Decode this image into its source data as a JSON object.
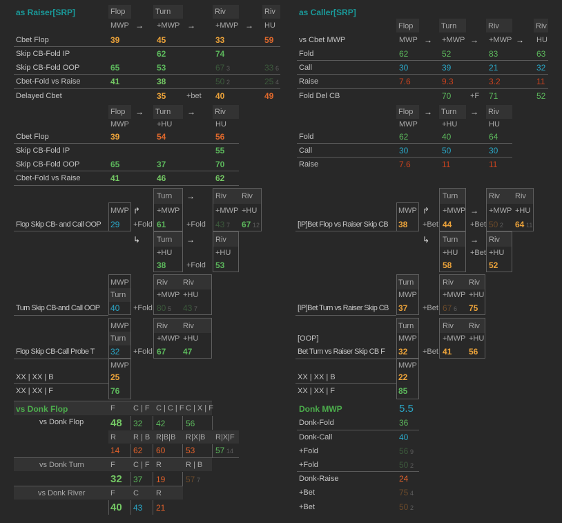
{
  "colors": {
    "background": "#282828",
    "title": "#1a9a9a",
    "orange": "#eca33a",
    "green": "#5cb85c",
    "cyan": "#2aa8c8",
    "red": "#c8421e"
  },
  "icons": {
    "arrow_right": "arrow-right-icon",
    "branch_up": "branch-up-icon",
    "branch_down": "branch-down-icon"
  },
  "raiser": {
    "title": "as Raiser[SRP]",
    "multiway": {
      "headers": [
        "Flop",
        "Turn",
        "Riv",
        "Riv"
      ],
      "sub": [
        "MWP",
        "+MWP",
        "+MWP",
        "HU"
      ],
      "rows": [
        {
          "label": "Cbet Flop",
          "values": [
            "39",
            "45",
            "33",
            "59"
          ],
          "samples": [
            "",
            "",
            "",
            ""
          ]
        },
        {
          "label": "Skip CB-Fold IP",
          "values": [
            "",
            "62",
            "74",
            ""
          ],
          "samples": [
            "",
            "",
            "",
            ""
          ]
        },
        {
          "label": "Skip CB-Fold OOP",
          "values": [
            "65",
            "53",
            "67",
            "33"
          ],
          "samples": [
            "",
            "",
            "3",
            "6"
          ]
        },
        {
          "label": "Cbet-Fold vs Raise",
          "values": [
            "41",
            "38",
            "50",
            "25"
          ],
          "samples": [
            "",
            "",
            "2",
            "4"
          ]
        },
        {
          "label": "Delayed Cbet",
          "values": [
            "",
            "35",
            "40",
            "49"
          ],
          "samples": [
            "",
            "",
            "",
            ""
          ],
          "connector": "+bet"
        }
      ]
    },
    "to_hu": {
      "headers": [
        "Flop",
        "Turn",
        "Riv"
      ],
      "sub": [
        "MWP",
        "+HU",
        "HU"
      ],
      "rows": [
        {
          "label": "Cbet Flop",
          "values": [
            "39",
            "54",
            "56"
          ]
        },
        {
          "label": "Skip CB-Fold IP",
          "values": [
            "",
            "",
            "55"
          ]
        },
        {
          "label": "Skip CB-Fold OOP",
          "values": [
            "65",
            "37",
            "70"
          ]
        },
        {
          "label": "Cbet-Fold vs Raise",
          "values": [
            "41",
            "46",
            "62"
          ]
        }
      ]
    },
    "flop_skip_call": {
      "label": "Flop Skip CB- and Call OOP",
      "flop": {
        "header": "MWP",
        "value": "29"
      },
      "connector": "+Fold",
      "turn_mwp": {
        "header": "Turn",
        "sub": "+MWP",
        "value": "61"
      },
      "river_mwp": {
        "headers": [
          "Riv",
          "Riv"
        ],
        "sub": [
          "+MWP",
          "+HU"
        ],
        "values": [
          "43",
          "67"
        ],
        "samples": [
          "7",
          "12"
        ]
      },
      "turn_hu": {
        "header": "Turn",
        "sub": "+HU",
        "value": "38"
      },
      "river_hu": {
        "header": "Riv",
        "sub": "+HU",
        "value": "53"
      }
    },
    "turn_skip_call": {
      "label": "Turn Skip CB-and Call OOP",
      "box": {
        "header": "MWP",
        "sub": "Turn",
        "value": "40"
      },
      "connector": "+Fold",
      "river": {
        "headers": [
          "Riv",
          "Riv"
        ],
        "sub": [
          "+MWP",
          "+HU"
        ],
        "values": [
          "80",
          "43"
        ],
        "samples": [
          "5",
          "7"
        ]
      }
    },
    "probe": {
      "label": "Flop Skip CB-Call Probe T",
      "box": {
        "header": "MWP",
        "sub": "Turn",
        "value": "32"
      },
      "connector": "+Fold",
      "river": {
        "headers": [
          "Riv",
          "Riv"
        ],
        "sub": [
          "+MWP",
          "+HU"
        ],
        "values": [
          "67",
          "47"
        ],
        "samples": [
          "",
          ""
        ]
      }
    },
    "xx": {
      "header": "MWP",
      "rows": [
        {
          "label": "XX | XX | B",
          "value": "25"
        },
        {
          "label": "XX | XX | F",
          "value": "76"
        }
      ]
    }
  },
  "caller": {
    "title": "as Caller[SRP]",
    "multiway": {
      "row_label": "vs Cbet MWP",
      "headers": [
        "Flop",
        "Turn",
        "Riv",
        "Riv"
      ],
      "sub": [
        "MWP",
        "+MWP",
        "+MWP",
        "HU"
      ],
      "rows": [
        {
          "label": "Fold",
          "values": [
            "62",
            "52",
            "83",
            "63"
          ]
        },
        {
          "label": "Call",
          "values": [
            "30",
            "39",
            "21",
            "32"
          ]
        },
        {
          "label": "Raise",
          "values": [
            "7.6",
            "9.3",
            "3.2",
            "11"
          ]
        },
        {
          "label": "Fold Del CB",
          "values": [
            "",
            "70",
            "71",
            "52"
          ],
          "connector": "+F"
        }
      ]
    },
    "to_hu": {
      "headers": [
        "Flop",
        "Turn",
        "Riv"
      ],
      "sub": [
        "MWP",
        "+HU",
        "HU"
      ],
      "rows": [
        {
          "label": "Fold",
          "values": [
            "62",
            "40",
            "64"
          ]
        },
        {
          "label": "Call",
          "values": [
            "30",
            "50",
            "30"
          ]
        },
        {
          "label": "Raise",
          "values": [
            "7.6",
            "11",
            "11"
          ]
        }
      ]
    },
    "bet_flop": {
      "label": "[IP]Bet Flop vs Raiser Skip CB",
      "flop": {
        "header": "MWP",
        "value": "38"
      },
      "connector": "+Bet",
      "turn_mwp": {
        "header": "Turn",
        "sub": "+MWP",
        "value": "44"
      },
      "river_mwp": {
        "headers": [
          "Riv",
          "Riv"
        ],
        "sub": [
          "+MWP",
          "+HU"
        ],
        "values": [
          "50",
          "64"
        ],
        "samples": [
          "2",
          "11"
        ]
      },
      "turn_hu": {
        "header": "Turn",
        "sub": "+HU",
        "value": "58"
      },
      "river_hu": {
        "header": "Riv",
        "sub": "+HU",
        "value": "52"
      }
    },
    "bet_turn": {
      "label": "[IP]Bet Turn vs Raiser Skip CB",
      "box": {
        "header": "Turn",
        "sub": "MWP",
        "value": "37"
      },
      "connector": "+Bet",
      "river": {
        "headers": [
          "Riv",
          "Riv"
        ],
        "sub": [
          "+MWP",
          "+HU"
        ],
        "values": [
          "67",
          "75"
        ],
        "samples": [
          "6",
          ""
        ]
      }
    },
    "bet_turn_oop": {
      "label_top": "[OOP]",
      "label": "Bet Turn vs Raiser Skip CB  F",
      "box": {
        "header": "Turn",
        "sub": "MWP",
        "value": "32"
      },
      "connector": "+Bet",
      "river": {
        "headers": [
          "Riv",
          "Riv"
        ],
        "sub": [
          "+MWP",
          "+HU"
        ],
        "values": [
          "41",
          "56"
        ],
        "samples": [
          "",
          ""
        ]
      }
    },
    "xx": {
      "header": "MWP",
      "rows": [
        {
          "label": "XX | XX | B",
          "value": "22"
        },
        {
          "label": "XX | XX | F",
          "value": "85"
        }
      ]
    }
  },
  "vs_donk": {
    "title": "vs Donk Flop",
    "flop": {
      "label": "vs Donk Flop",
      "headers": [
        "F",
        "C | F",
        "C | C | F",
        "C | X | F"
      ],
      "values": [
        "48",
        "32",
        "42",
        "56"
      ],
      "headers2": [
        "R",
        "R | B",
        "R|B|B",
        "R|X|B",
        "R|X|F"
      ],
      "values2": [
        "14",
        "62",
        "60",
        "53",
        "57"
      ],
      "sample2": "14"
    },
    "turn": {
      "label": "vs Donk Turn",
      "headers": [
        "F",
        "C | F",
        "R",
        "R | B"
      ],
      "values": [
        "32",
        "37",
        "19",
        "57"
      ],
      "sample": "7"
    },
    "river": {
      "label": "vs Donk River",
      "headers": [
        "F",
        "C",
        "R"
      ],
      "values": [
        "40",
        "43",
        "21"
      ]
    }
  },
  "donk_mwp": {
    "title": "Donk MWP",
    "value": "5.5",
    "rows": [
      {
        "label": "Donk-Fold",
        "value": "36",
        "sample": ""
      },
      {
        "label": "Donk-Call",
        "value": "40",
        "sample": ""
      },
      {
        "label": "+Fold",
        "value": "56",
        "sample": "9"
      },
      {
        "label": "+Fold",
        "value": "50",
        "sample": "2"
      },
      {
        "label": "Donk-Raise",
        "value": "24",
        "sample": ""
      },
      {
        "label": "+Bet",
        "value": "75",
        "sample": "4"
      },
      {
        "label": "+Bet",
        "value": "50",
        "sample": "2"
      }
    ]
  }
}
